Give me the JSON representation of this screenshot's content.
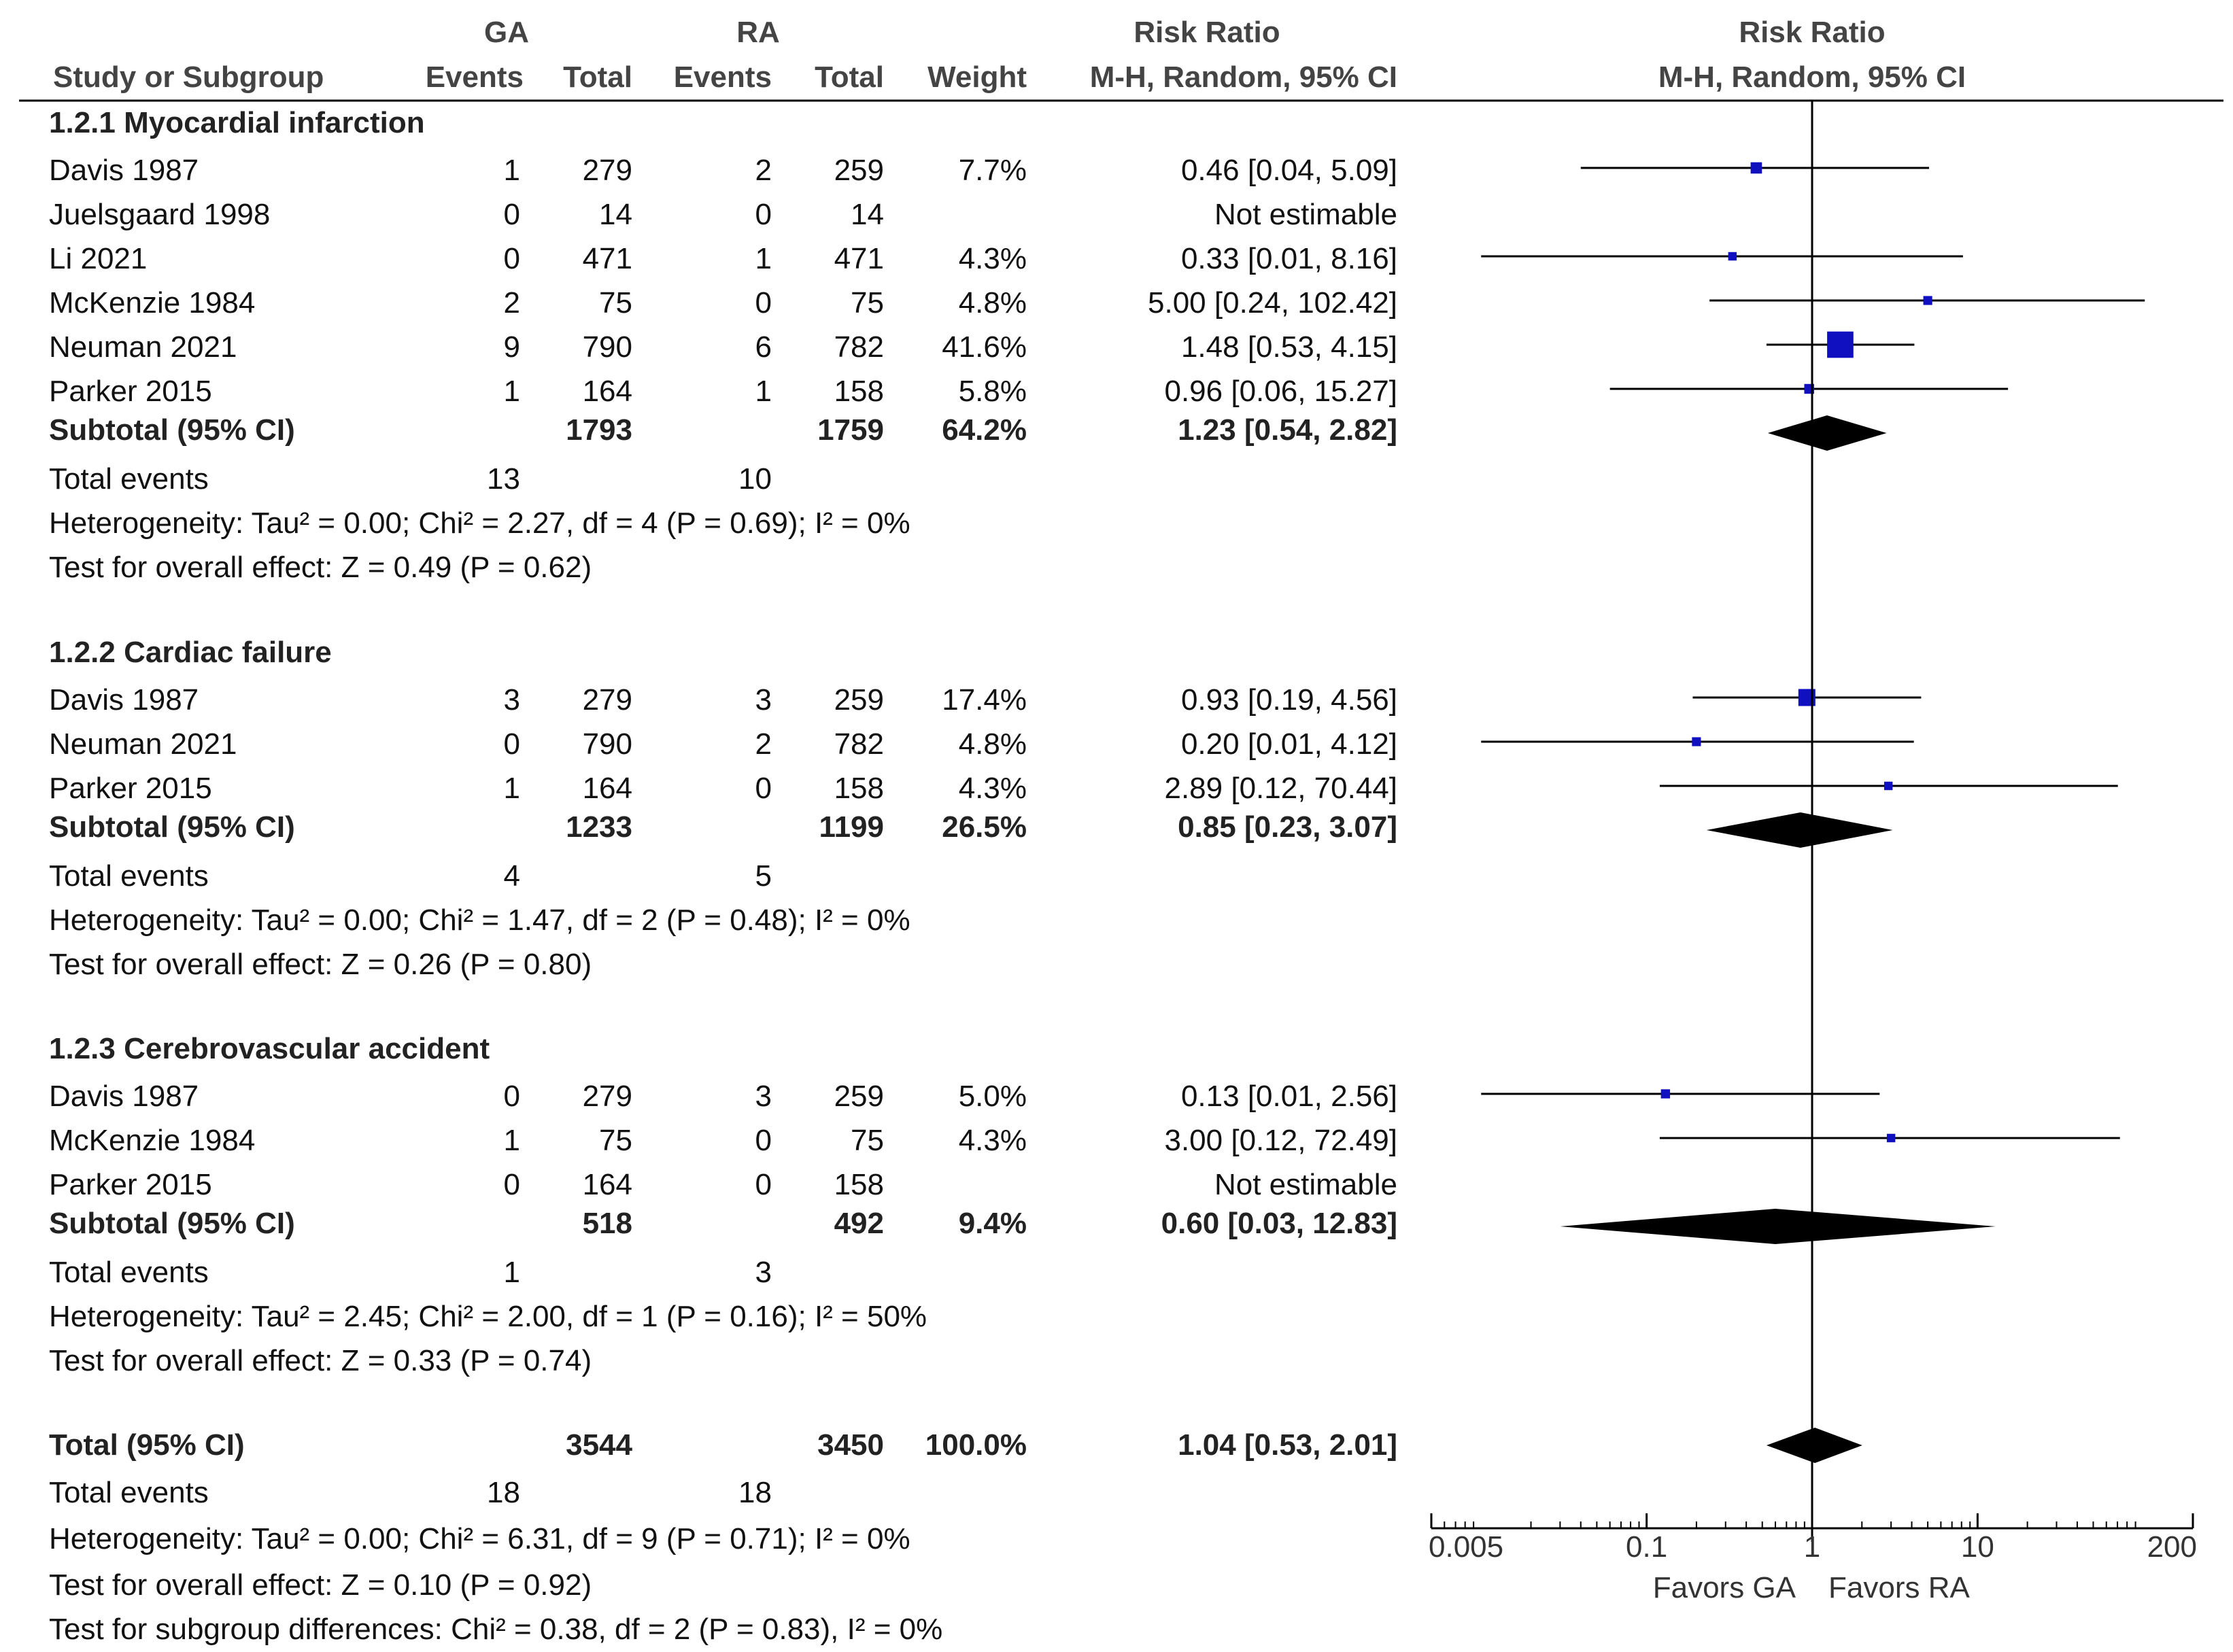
{
  "header": {
    "ga": "GA",
    "ra": "RA",
    "risk_ratio": "Risk Ratio",
    "risk_ratio_plot": "Risk Ratio",
    "study": "Study or Subgroup",
    "events1": "Events",
    "total1": "Total",
    "events2": "Events",
    "total2": "Total",
    "weight": "Weight",
    "method": "M-H, Random, 95% CI",
    "method_plot": "M-H, Random, 95% CI"
  },
  "chart_data": {
    "type": "forest",
    "title": "Risk Ratio, M-H, Random, 95% CI",
    "scale": "log",
    "xlim": [
      0.005,
      200
    ],
    "ticks": [
      {
        "value": 0.005,
        "label": "0.005"
      },
      {
        "value": 0.1,
        "label": "0.1"
      },
      {
        "value": 1,
        "label": "1"
      },
      {
        "value": 10,
        "label": "10"
      },
      {
        "value": 200,
        "label": "200"
      }
    ],
    "favors_left": "Favors GA",
    "favors_right": "Favors RA",
    "groups": [
      {
        "title": "1.2.1 Myocardial infarction",
        "studies": [
          {
            "name": "Davis 1987",
            "ga_events": "1",
            "ga_total": "279",
            "ra_events": "2",
            "ra_total": "259",
            "weight": "7.7%",
            "ci_text": "0.46 [0.04, 5.09]",
            "rr": 0.46,
            "lo": 0.04,
            "hi": 5.09,
            "w": 7.7
          },
          {
            "name": "Juelsgaard 1998",
            "ga_events": "0",
            "ga_total": "14",
            "ra_events": "0",
            "ra_total": "14",
            "weight": "",
            "ci_text": "Not estimable",
            "rr": null,
            "lo": null,
            "hi": null,
            "w": 0
          },
          {
            "name": "Li 2021",
            "ga_events": "0",
            "ga_total": "471",
            "ra_events": "1",
            "ra_total": "471",
            "weight": "4.3%",
            "ci_text": "0.33 [0.01, 8.16]",
            "rr": 0.33,
            "lo": 0.01,
            "hi": 8.16,
            "w": 4.3
          },
          {
            "name": "McKenzie 1984",
            "ga_events": "2",
            "ga_total": "75",
            "ra_events": "0",
            "ra_total": "75",
            "weight": "4.8%",
            "ci_text": "5.00 [0.24, 102.42]",
            "rr": 5.0,
            "lo": 0.24,
            "hi": 102.42,
            "w": 4.8
          },
          {
            "name": "Neuman 2021",
            "ga_events": "9",
            "ga_total": "790",
            "ra_events": "6",
            "ra_total": "782",
            "weight": "41.6%",
            "ci_text": "1.48 [0.53, 4.15]",
            "rr": 1.48,
            "lo": 0.53,
            "hi": 4.15,
            "w": 41.6
          },
          {
            "name": "Parker 2015",
            "ga_events": "1",
            "ga_total": "164",
            "ra_events": "1",
            "ra_total": "158",
            "weight": "5.8%",
            "ci_text": "0.96 [0.06, 15.27]",
            "rr": 0.96,
            "lo": 0.06,
            "hi": 15.27,
            "w": 5.8
          }
        ],
        "subtotal": {
          "label": "Subtotal (95% CI)",
          "ga_total": "1793",
          "ra_total": "1759",
          "weight": "64.2%",
          "ci_text": "1.23 [0.54, 2.82]",
          "rr": 1.23,
          "lo": 0.54,
          "hi": 2.82
        },
        "events": {
          "label": "Total events",
          "ga": "13",
          "ra": "10"
        },
        "heterogeneity": "Heterogeneity: Tau² = 0.00; Chi² = 2.27, df = 4 (P = 0.69); I² = 0%",
        "overall": "Test for overall effect: Z = 0.49 (P = 0.62)"
      },
      {
        "title": "1.2.2 Cardiac failure",
        "studies": [
          {
            "name": "Davis 1987",
            "ga_events": "3",
            "ga_total": "279",
            "ra_events": "3",
            "ra_total": "259",
            "weight": "17.4%",
            "ci_text": "0.93 [0.19, 4.56]",
            "rr": 0.93,
            "lo": 0.19,
            "hi": 4.56,
            "w": 17.4
          },
          {
            "name": "Neuman 2021",
            "ga_events": "0",
            "ga_total": "790",
            "ra_events": "2",
            "ra_total": "782",
            "weight": "4.8%",
            "ci_text": "0.20 [0.01, 4.12]",
            "rr": 0.2,
            "lo": 0.01,
            "hi": 4.12,
            "w": 4.8
          },
          {
            "name": "Parker 2015",
            "ga_events": "1",
            "ga_total": "164",
            "ra_events": "0",
            "ra_total": "158",
            "weight": "4.3%",
            "ci_text": "2.89 [0.12, 70.44]",
            "rr": 2.89,
            "lo": 0.12,
            "hi": 70.44,
            "w": 4.3
          }
        ],
        "subtotal": {
          "label": "Subtotal (95% CI)",
          "ga_total": "1233",
          "ra_total": "1199",
          "weight": "26.5%",
          "ci_text": "0.85 [0.23, 3.07]",
          "rr": 0.85,
          "lo": 0.23,
          "hi": 3.07
        },
        "events": {
          "label": "Total events",
          "ga": "4",
          "ra": "5"
        },
        "heterogeneity": "Heterogeneity: Tau² = 0.00; Chi² = 1.47, df = 2 (P = 0.48); I² = 0%",
        "overall": "Test for overall effect: Z = 0.26 (P = 0.80)"
      },
      {
        "title": "1.2.3 Cerebrovascular accident",
        "studies": [
          {
            "name": "Davis 1987",
            "ga_events": "0",
            "ga_total": "279",
            "ra_events": "3",
            "ra_total": "259",
            "weight": "5.0%",
            "ci_text": "0.13 [0.01, 2.56]",
            "rr": 0.13,
            "lo": 0.01,
            "hi": 2.56,
            "w": 5.0
          },
          {
            "name": "McKenzie 1984",
            "ga_events": "1",
            "ga_total": "75",
            "ra_events": "0",
            "ra_total": "75",
            "weight": "4.3%",
            "ci_text": "3.00 [0.12, 72.49]",
            "rr": 3.0,
            "lo": 0.12,
            "hi": 72.49,
            "w": 4.3
          },
          {
            "name": "Parker 2015",
            "ga_events": "0",
            "ga_total": "164",
            "ra_events": "0",
            "ra_total": "158",
            "weight": "",
            "ci_text": "Not estimable",
            "rr": null,
            "lo": null,
            "hi": null,
            "w": 0
          }
        ],
        "subtotal": {
          "label": "Subtotal (95% CI)",
          "ga_total": "518",
          "ra_total": "492",
          "weight": "9.4%",
          "ci_text": "0.60 [0.03, 12.83]",
          "rr": 0.6,
          "lo": 0.03,
          "hi": 12.83
        },
        "events": {
          "label": "Total events",
          "ga": "1",
          "ra": "3"
        },
        "heterogeneity": "Heterogeneity: Tau² = 2.45; Chi² = 2.00, df = 1 (P = 0.16); I² = 50%",
        "overall": "Test for overall effect: Z = 0.33 (P = 0.74)"
      }
    ],
    "total": {
      "label": "Total (95% CI)",
      "ga_total": "3544",
      "ra_total": "3450",
      "weight": "100.0%",
      "ci_text": "1.04 [0.53, 2.01]",
      "rr": 1.04,
      "lo": 0.53,
      "hi": 2.01,
      "events": {
        "label": "Total events",
        "ga": "18",
        "ra": "18"
      },
      "heterogeneity": "Heterogeneity: Tau² = 0.00; Chi² = 6.31, df = 9 (P = 0.71); I² = 0%",
      "overall": "Test for overall effect: Z = 0.10 (P = 0.92)",
      "subgroup": "Test for subgroup differences: Chi² = 0.38, df = 2 (P = 0.83), I² = 0%"
    },
    "colors": {
      "square": "#1010c0",
      "diamond": "#000000",
      "line": "#000000"
    }
  }
}
